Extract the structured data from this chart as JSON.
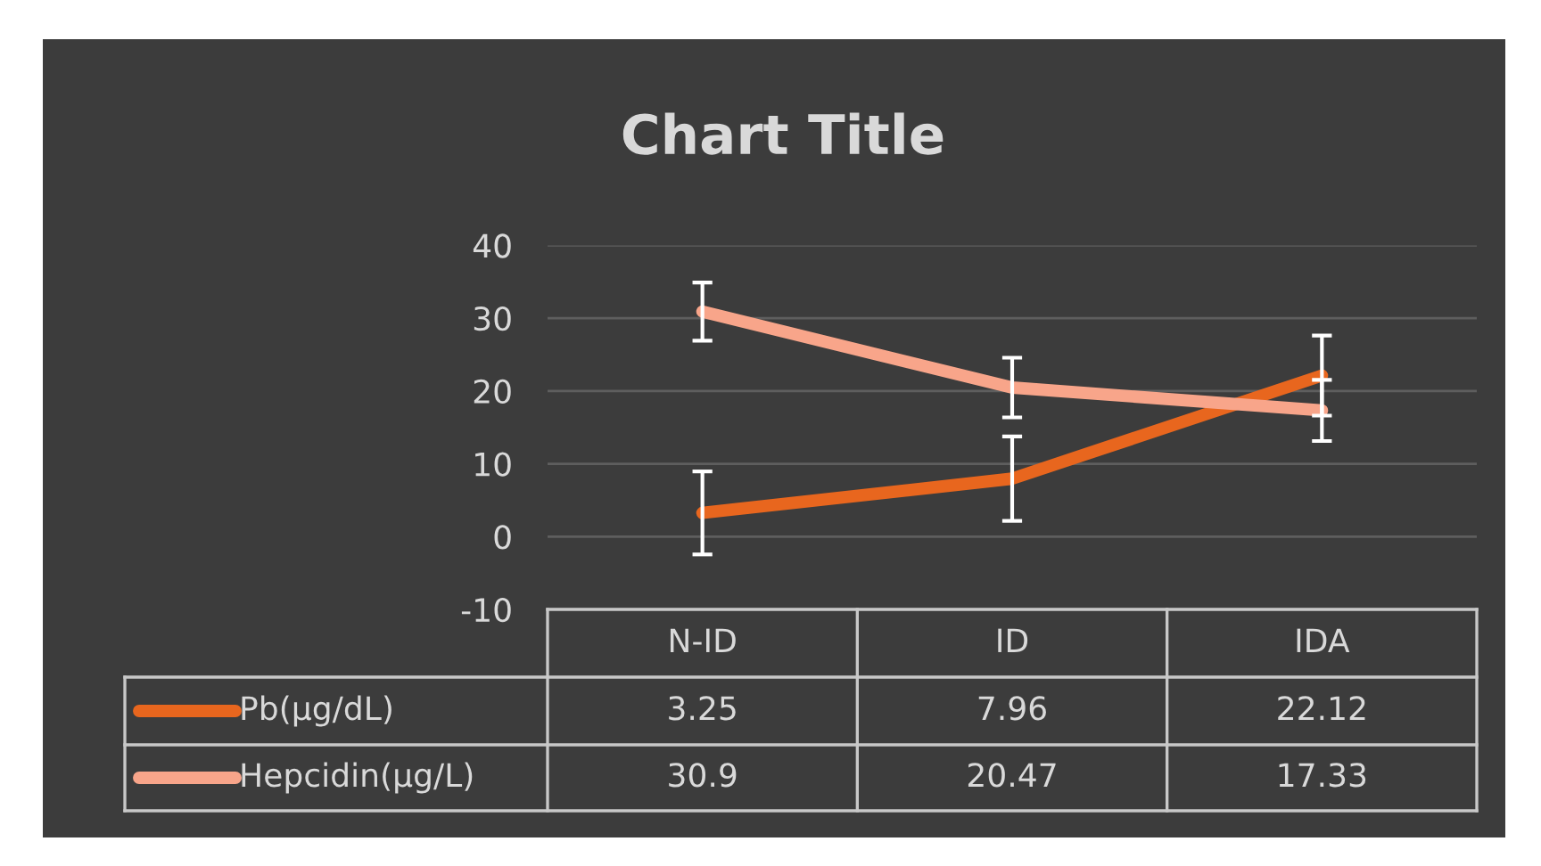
{
  "chart_data": {
    "type": "line",
    "title": "Chart Title",
    "categories": [
      "N-ID",
      "ID",
      "IDA"
    ],
    "series": [
      {
        "name": "Pb(µg/dL)",
        "color": "#e8661e",
        "values": [
          3.25,
          7.96,
          22.12
        ],
        "errors": [
          5.7,
          5.8,
          5.5
        ]
      },
      {
        "name": "Hepcidin(µg/L)",
        "color": "#f8a58a",
        "values": [
          30.9,
          20.47,
          17.33
        ],
        "errors": [
          4,
          4.1,
          4.2
        ]
      }
    ],
    "ylim": [
      -10,
      40
    ],
    "yticks": [
      -10,
      0,
      10,
      20,
      30,
      40
    ],
    "grid": "y",
    "legend": "bottom",
    "data_labels": true,
    "marker": "none",
    "line_style": "solid"
  }
}
